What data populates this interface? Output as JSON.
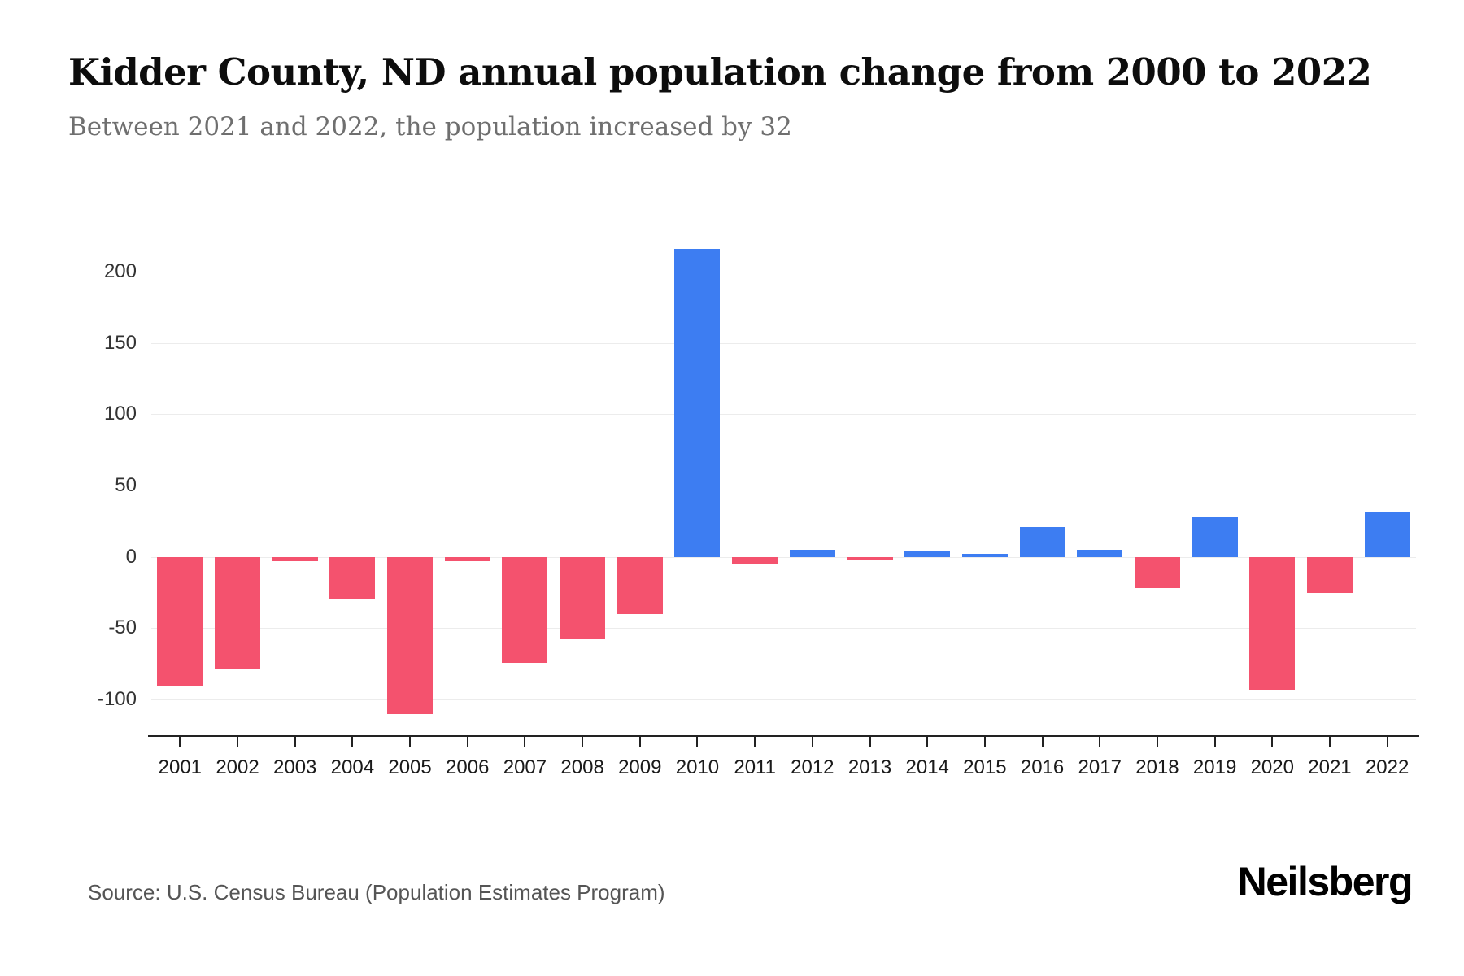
{
  "header": {
    "title": "Kidder County, ND annual population change from 2000 to 2022",
    "subtitle": "Between 2021 and 2022, the population increased by 32"
  },
  "footer": {
    "source": "Source: U.S. Census Bureau (Population Estimates Program)",
    "logo": "Neilsberg"
  },
  "chart_data": {
    "type": "bar",
    "title": "Kidder County, ND annual population change from 2000 to 2022",
    "subtitle": "Between 2021 and 2022, the population increased by 32",
    "categories": [
      "2001",
      "2002",
      "2003",
      "2004",
      "2005",
      "2006",
      "2007",
      "2008",
      "2009",
      "2010",
      "2011",
      "2012",
      "2013",
      "2014",
      "2015",
      "2016",
      "2017",
      "2018",
      "2019",
      "2020",
      "2021",
      "2022"
    ],
    "values": [
      -90,
      -78,
      -3,
      -30,
      -110,
      -3,
      -74,
      -58,
      -40,
      216,
      -5,
      5,
      -2,
      4,
      2,
      21,
      5,
      -22,
      28,
      -93,
      -25,
      32
    ],
    "xlabel": "",
    "ylabel": "",
    "ylim": [
      -125,
      225
    ],
    "yticks": [
      -100,
      -50,
      0,
      50,
      100,
      150,
      200
    ],
    "grid": true,
    "legend": "none",
    "colors": {
      "positive": "#3d7df2",
      "negative": "#f4526e"
    }
  }
}
